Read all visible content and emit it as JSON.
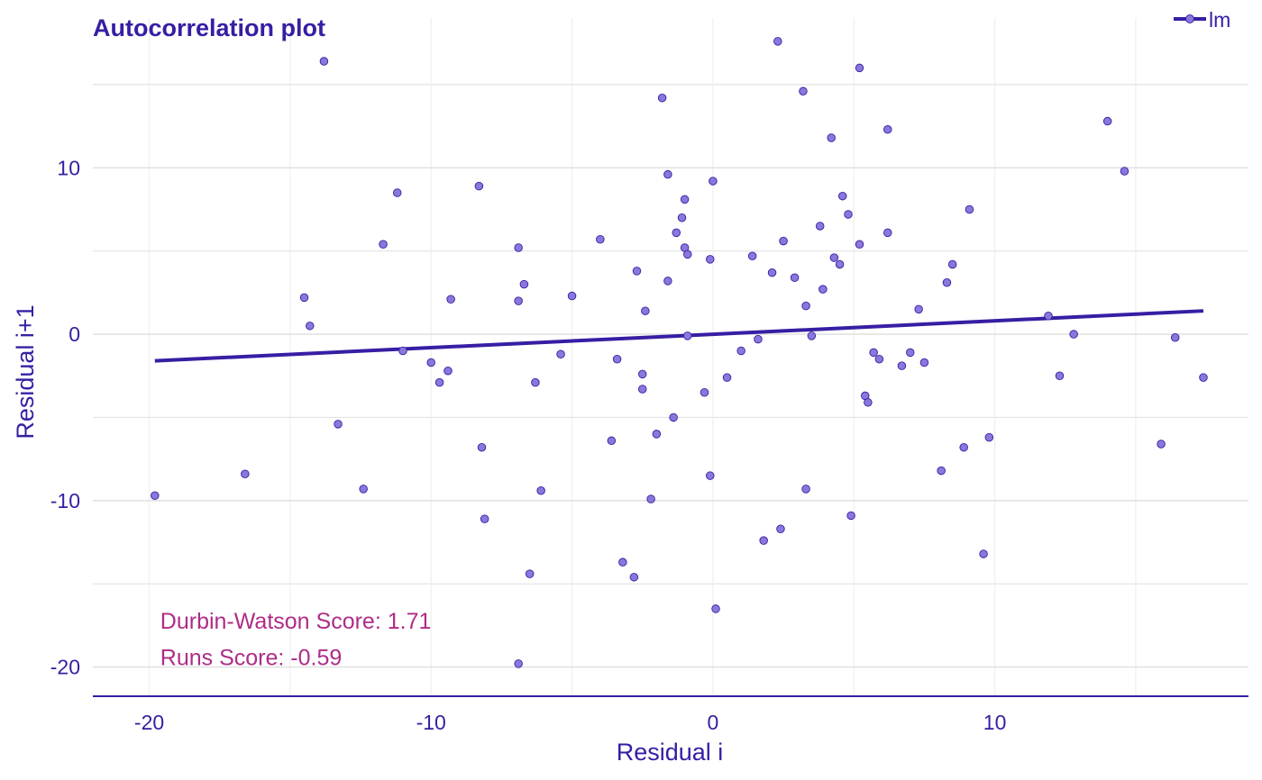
{
  "chart_data": {
    "type": "scatter",
    "title": "Autocorrelation plot",
    "xlabel": "Residual i",
    "ylabel": "Residual i+1",
    "xlim": [
      -22,
      19
    ],
    "ylim": [
      -21.7,
      19
    ],
    "x_ticks": [
      -20,
      -10,
      0,
      10
    ],
    "x_tick_labels": [
      "-20",
      "-10",
      "0",
      "10"
    ],
    "y_ticks": [
      -20,
      -10,
      0,
      10
    ],
    "y_tick_labels": [
      "-20",
      "-10",
      "0",
      "10"
    ],
    "x_minor_grid": [
      -15,
      -5,
      5,
      15
    ],
    "y_minor_grid": [
      -15,
      -5,
      5,
      15
    ],
    "grid": true,
    "legend": {
      "position": "top-right",
      "entries": [
        {
          "name": "lm"
        }
      ]
    },
    "series": [
      {
        "name": "lm",
        "points": [
          [
            -19.8,
            -9.7
          ],
          [
            -16.6,
            -8.4
          ],
          [
            -14.5,
            2.2
          ],
          [
            -14.3,
            0.5
          ],
          [
            -13.8,
            16.4
          ],
          [
            -13.3,
            -5.4
          ],
          [
            -12.4,
            -9.3
          ],
          [
            -11.7,
            5.4
          ],
          [
            -11.2,
            8.5
          ],
          [
            -11.0,
            -1.0
          ],
          [
            -10.0,
            -1.7
          ],
          [
            -9.7,
            -2.9
          ],
          [
            -9.4,
            -2.2
          ],
          [
            -9.3,
            2.1
          ],
          [
            -8.3,
            8.9
          ],
          [
            -8.2,
            -6.8
          ],
          [
            -8.1,
            -11.1
          ],
          [
            -6.9,
            5.2
          ],
          [
            -6.9,
            2.0
          ],
          [
            -6.9,
            -19.8
          ],
          [
            -6.7,
            3.0
          ],
          [
            -6.5,
            -14.4
          ],
          [
            -6.3,
            -2.9
          ],
          [
            -6.1,
            -9.4
          ],
          [
            -5.4,
            -1.2
          ],
          [
            -5.0,
            2.3
          ],
          [
            -4.0,
            5.7
          ],
          [
            -3.6,
            -6.4
          ],
          [
            -3.4,
            -1.5
          ],
          [
            -3.2,
            -13.7
          ],
          [
            -2.8,
            -14.6
          ],
          [
            -2.7,
            3.8
          ],
          [
            -2.5,
            -2.4
          ],
          [
            -2.5,
            -3.3
          ],
          [
            -2.4,
            1.4
          ],
          [
            -2.2,
            -9.9
          ],
          [
            -2.0,
            -6.0
          ],
          [
            -1.8,
            14.2
          ],
          [
            -1.6,
            9.6
          ],
          [
            -1.6,
            3.2
          ],
          [
            -1.4,
            -5.0
          ],
          [
            -1.3,
            6.1
          ],
          [
            -1.1,
            7.0
          ],
          [
            -1.0,
            8.1
          ],
          [
            -1.0,
            5.2
          ],
          [
            -0.9,
            4.8
          ],
          [
            -0.9,
            -0.1
          ],
          [
            -0.3,
            -3.5
          ],
          [
            -0.1,
            4.5
          ],
          [
            -0.1,
            -8.5
          ],
          [
            0.0,
            9.2
          ],
          [
            0.1,
            -16.5
          ],
          [
            0.5,
            -2.6
          ],
          [
            1.0,
            -1.0
          ],
          [
            1.4,
            4.7
          ],
          [
            1.6,
            -0.3
          ],
          [
            1.8,
            -12.4
          ],
          [
            2.1,
            3.7
          ],
          [
            2.3,
            17.6
          ],
          [
            2.4,
            -11.7
          ],
          [
            2.5,
            5.6
          ],
          [
            2.9,
            3.4
          ],
          [
            3.2,
            14.6
          ],
          [
            3.3,
            1.7
          ],
          [
            3.3,
            -9.3
          ],
          [
            3.5,
            -0.1
          ],
          [
            3.8,
            6.5
          ],
          [
            3.9,
            2.7
          ],
          [
            4.2,
            11.8
          ],
          [
            4.3,
            4.6
          ],
          [
            4.5,
            4.2
          ],
          [
            4.6,
            8.3
          ],
          [
            4.8,
            7.2
          ],
          [
            4.9,
            -10.9
          ],
          [
            5.2,
            16.0
          ],
          [
            5.2,
            5.4
          ],
          [
            5.4,
            -3.7
          ],
          [
            5.5,
            -4.1
          ],
          [
            5.7,
            -1.1
          ],
          [
            5.9,
            -1.5
          ],
          [
            6.2,
            12.3
          ],
          [
            6.2,
            6.1
          ],
          [
            6.7,
            -1.9
          ],
          [
            7.0,
            -1.1
          ],
          [
            7.3,
            1.5
          ],
          [
            7.5,
            -1.7
          ],
          [
            8.1,
            -8.2
          ],
          [
            8.3,
            3.1
          ],
          [
            8.5,
            4.2
          ],
          [
            8.9,
            -6.8
          ],
          [
            9.1,
            7.5
          ],
          [
            9.6,
            -13.2
          ],
          [
            9.8,
            -6.2
          ],
          [
            11.9,
            1.1
          ],
          [
            12.3,
            -2.5
          ],
          [
            12.8,
            0.0
          ],
          [
            14.0,
            12.8
          ],
          [
            14.6,
            9.8
          ],
          [
            15.9,
            -6.6
          ],
          [
            16.4,
            -0.2
          ],
          [
            17.4,
            -2.6
          ]
        ]
      }
    ],
    "fit_line": {
      "x": [
        -19.8,
        17.4
      ],
      "y": [
        -1.6,
        1.4
      ]
    },
    "annotations": [
      {
        "text": "Durbin-Watson Score: 1.71",
        "x": -19.8,
        "y": -17.2
      },
      {
        "text": "Runs Score: -0.59",
        "x": -19.8,
        "y": -19.4
      }
    ],
    "colors": {
      "title": "#371ea3",
      "axis_text": "#371ea3",
      "line": "#371ea3",
      "point_fill": "#8b77dc",
      "point_stroke": "#371ea3",
      "annotation": "#ae2c87",
      "grid_major": "#e2e2e2",
      "grid_minor": "#efefef"
    }
  }
}
